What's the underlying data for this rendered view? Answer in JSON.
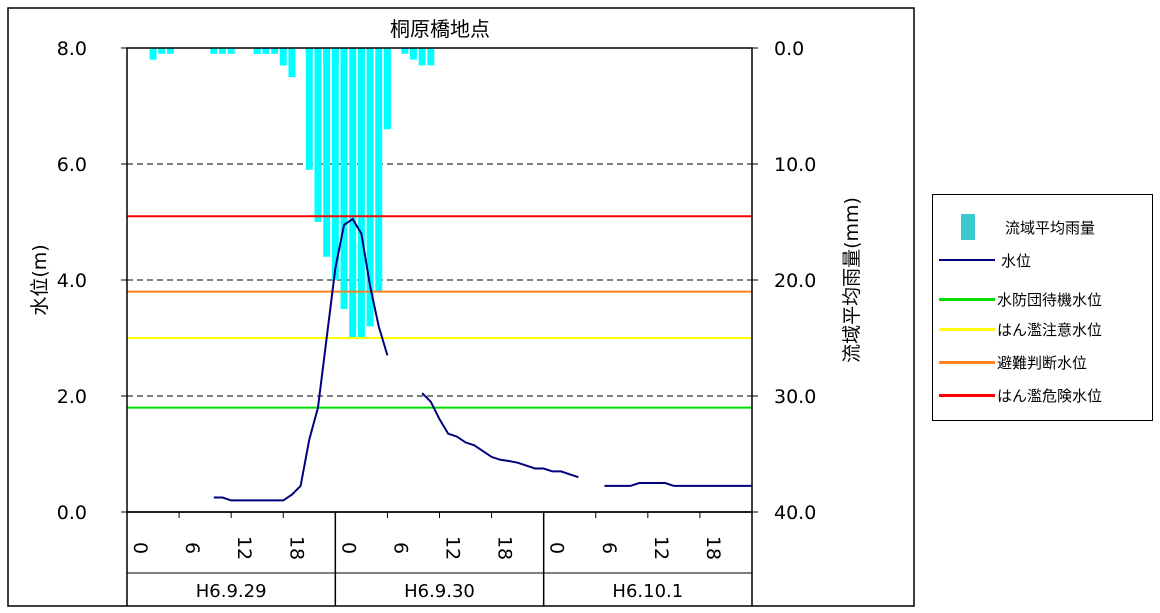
{
  "chart_data": {
    "type": "bar+line",
    "title": "桐原橋地点",
    "ylabel_left": "水位(m)",
    "ylabel_right": "流域平均雨量(mm)",
    "ylim_left": [
      0,
      8
    ],
    "ylim_right": [
      40,
      0
    ],
    "yticks_left": [
      "0.0",
      "2.0",
      "4.0",
      "6.0",
      "8.0"
    ],
    "yticks_right": [
      "40.0",
      "30.0",
      "20.0",
      "10.0",
      "0.0"
    ],
    "xtick_hours": [
      "0",
      "6",
      "12",
      "18",
      "0",
      "6",
      "12",
      "18",
      "0",
      "6",
      "12",
      "18"
    ],
    "date_labels": [
      "H6.9.29",
      "H6.9.30",
      "H6.10.1"
    ],
    "grid": "dashed horizontal",
    "legend_position": "right",
    "colors": {
      "rain": "#00ffff",
      "water_level": "#000080",
      "standby": "#00e000",
      "caution": "#ffff00",
      "evacuation": "#ff8020",
      "danger": "#ff0000"
    },
    "thresholds": [
      {
        "name": "水防団待機水位",
        "value": 1.8
      },
      {
        "name": "はん濫注意水位",
        "value": 3.0
      },
      {
        "name": "避難判断水位",
        "value": 3.8
      },
      {
        "name": "はん濫危険水位",
        "value": 5.1
      }
    ],
    "rainfall": {
      "name": "流域平均雨量",
      "hours": [
        3,
        4,
        5,
        6,
        7,
        8,
        9,
        10,
        11,
        12,
        13,
        14,
        15,
        16,
        17,
        18,
        19,
        20,
        21,
        22,
        23,
        24,
        25,
        26,
        27,
        28,
        29,
        30,
        31,
        32,
        33,
        34,
        35,
        36,
        37,
        38,
        39,
        40,
        41,
        42,
        43,
        44,
        45,
        46,
        47,
        48,
        49,
        50,
        51,
        52,
        53
      ],
      "values": [
        1.0,
        0.5,
        0.5,
        0,
        0,
        0,
        0,
        0.5,
        0.5,
        0.5,
        0,
        0,
        0.5,
        0.5,
        0,
        0,
        0,
        0,
        0.5,
        0.5,
        1.0,
        1.0,
        1.0,
        0,
        0.5,
        0,
        0,
        0,
        0,
        0.5,
        1.0,
        1.5,
        1.5,
        0,
        0,
        0,
        0,
        0,
        0,
        0,
        0,
        0,
        0,
        0,
        0,
        0,
        0,
        0,
        0,
        0,
        0
      ]
    },
    "water_level_segments": [
      {
        "hours": [
          10,
          11,
          12,
          13,
          14,
          15,
          16,
          17,
          18,
          19,
          20,
          21,
          22,
          23,
          24,
          25,
          26,
          27,
          28,
          29,
          30
        ],
        "values": [
          0.25,
          0.25,
          0.2,
          0.2,
          0.2,
          0.2,
          0.2,
          0.2,
          0.2,
          0.3,
          0.45,
          1.25,
          1.8,
          3.0,
          4.2,
          4.95,
          5.05,
          4.8,
          3.9,
          3.2,
          2.7
        ]
      },
      {
        "hours": [
          34,
          35,
          36,
          37,
          38,
          39,
          40,
          41,
          42,
          43,
          44,
          45,
          46,
          47,
          48,
          49,
          50,
          51,
          52
        ],
        "values": [
          2.05,
          1.9,
          1.6,
          1.35,
          1.3,
          1.2,
          1.15,
          1.05,
          0.95,
          0.9,
          0.88,
          0.85,
          0.8,
          0.75,
          0.75,
          0.7,
          0.7,
          0.65,
          0.6
        ]
      },
      {
        "hours": [
          55,
          56,
          57,
          58,
          59,
          60,
          61,
          62,
          63,
          64,
          65,
          66,
          67,
          68,
          69,
          70,
          71,
          72
        ],
        "values": [
          0.45,
          0.45,
          0.45,
          0.45,
          0.5,
          0.5,
          0.5,
          0.5,
          0.45,
          0.45,
          0.45,
          0.45,
          0.45,
          0.45,
          0.45,
          0.45,
          0.45,
          0.45
        ]
      }
    ]
  },
  "rain_bars_extra": {
    "hours": [
      15,
      16,
      17,
      18,
      19,
      20,
      21,
      22,
      23,
      24,
      25,
      26,
      27,
      28,
      29,
      30
    ],
    "values": [
      0.5,
      0.5,
      0.5,
      1.5,
      2.5,
      0,
      10.5,
      15,
      18,
      20,
      22.5,
      25,
      25,
      24,
      21,
      7
    ]
  },
  "legend": {
    "rain": "流域平均雨量",
    "water_level": "水位",
    "standby": "水防団待機水位",
    "caution": "はん濫注意水位",
    "evacuation": "避難判断水位",
    "danger": "はん濫危険水位"
  }
}
